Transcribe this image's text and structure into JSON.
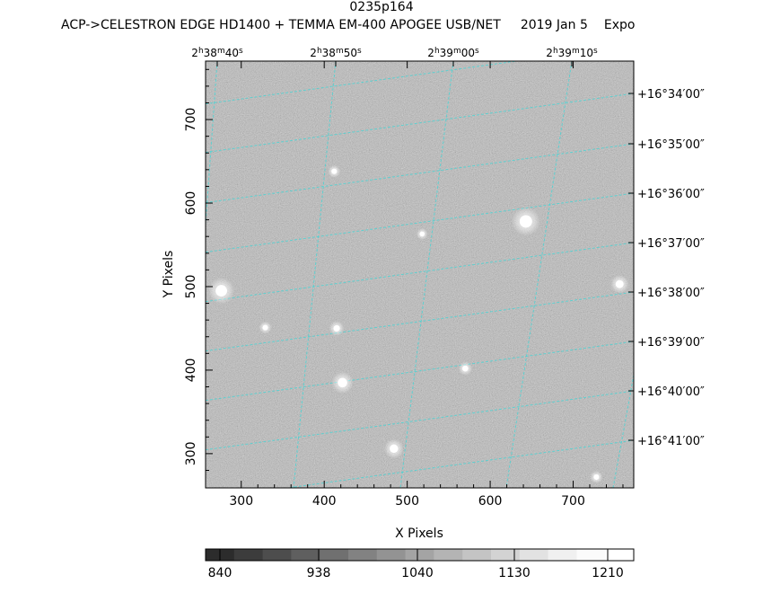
{
  "header": {
    "object": "0235p164",
    "instrument": "ACP->CELESTRON EDGE HD1400 + TEMMA EM-400 APOGEE USB/NET",
    "date": "2019 Jan  5",
    "exposure_prefix": "Expo"
  },
  "axes": {
    "x_label": "X Pixels",
    "y_label": "Y Pixels",
    "x_ticks": [
      "300",
      "400",
      "500",
      "600",
      "700"
    ],
    "y_ticks": [
      "300",
      "400",
      "500",
      "600",
      "700"
    ],
    "x_range": [
      257,
      773
    ],
    "y_range": [
      259,
      770
    ]
  },
  "ra_ticks": [
    {
      "h": "2",
      "m": "38",
      "s": "40"
    },
    {
      "h": "2",
      "m": "38",
      "s": "50"
    },
    {
      "h": "2",
      "m": "39",
      "s": "00"
    },
    {
      "h": "2",
      "m": "39",
      "s": "10"
    }
  ],
  "dec_ticks": [
    "+16°34′00″",
    "+16°35′00″",
    "+16°36′00″",
    "+16°37′00″",
    "+16°38′00″",
    "+16°39′00″",
    "+16°40′00″",
    "+16°41′00″"
  ],
  "colorbar": {
    "labels": [
      "840",
      "938",
      "1040",
      "1130",
      "1210"
    ],
    "shades": [
      "#2c2c2c",
      "#3c3c3c",
      "#4d4d4d",
      "#5f5f5f",
      "#707070",
      "#828282",
      "#939393",
      "#a4a4a4",
      "#b4b4b4",
      "#c4c4c4",
      "#d3d3d3",
      "#e2e2e2",
      "#f0f0f0",
      "#fbfbfb",
      "#ffffff"
    ]
  },
  "colors": {
    "background_field": "#8e8e8e",
    "grid": "#3fd6d6",
    "frame": "#000000"
  },
  "stars": [
    {
      "x": 643,
      "y": 578,
      "bright": 1.0
    },
    {
      "x": 276,
      "y": 495,
      "bright": 0.9
    },
    {
      "x": 422,
      "y": 385,
      "bright": 0.7
    },
    {
      "x": 484,
      "y": 306,
      "bright": 0.6
    },
    {
      "x": 756,
      "y": 503,
      "bright": 0.55
    },
    {
      "x": 415,
      "y": 450,
      "bright": 0.4
    },
    {
      "x": 570,
      "y": 402,
      "bright": 0.35
    },
    {
      "x": 329,
      "y": 451,
      "bright": 0.3
    },
    {
      "x": 412,
      "y": 638,
      "bright": 0.3
    },
    {
      "x": 728,
      "y": 272,
      "bright": 0.3
    },
    {
      "x": 518,
      "y": 563,
      "bright": 0.25
    }
  ]
}
